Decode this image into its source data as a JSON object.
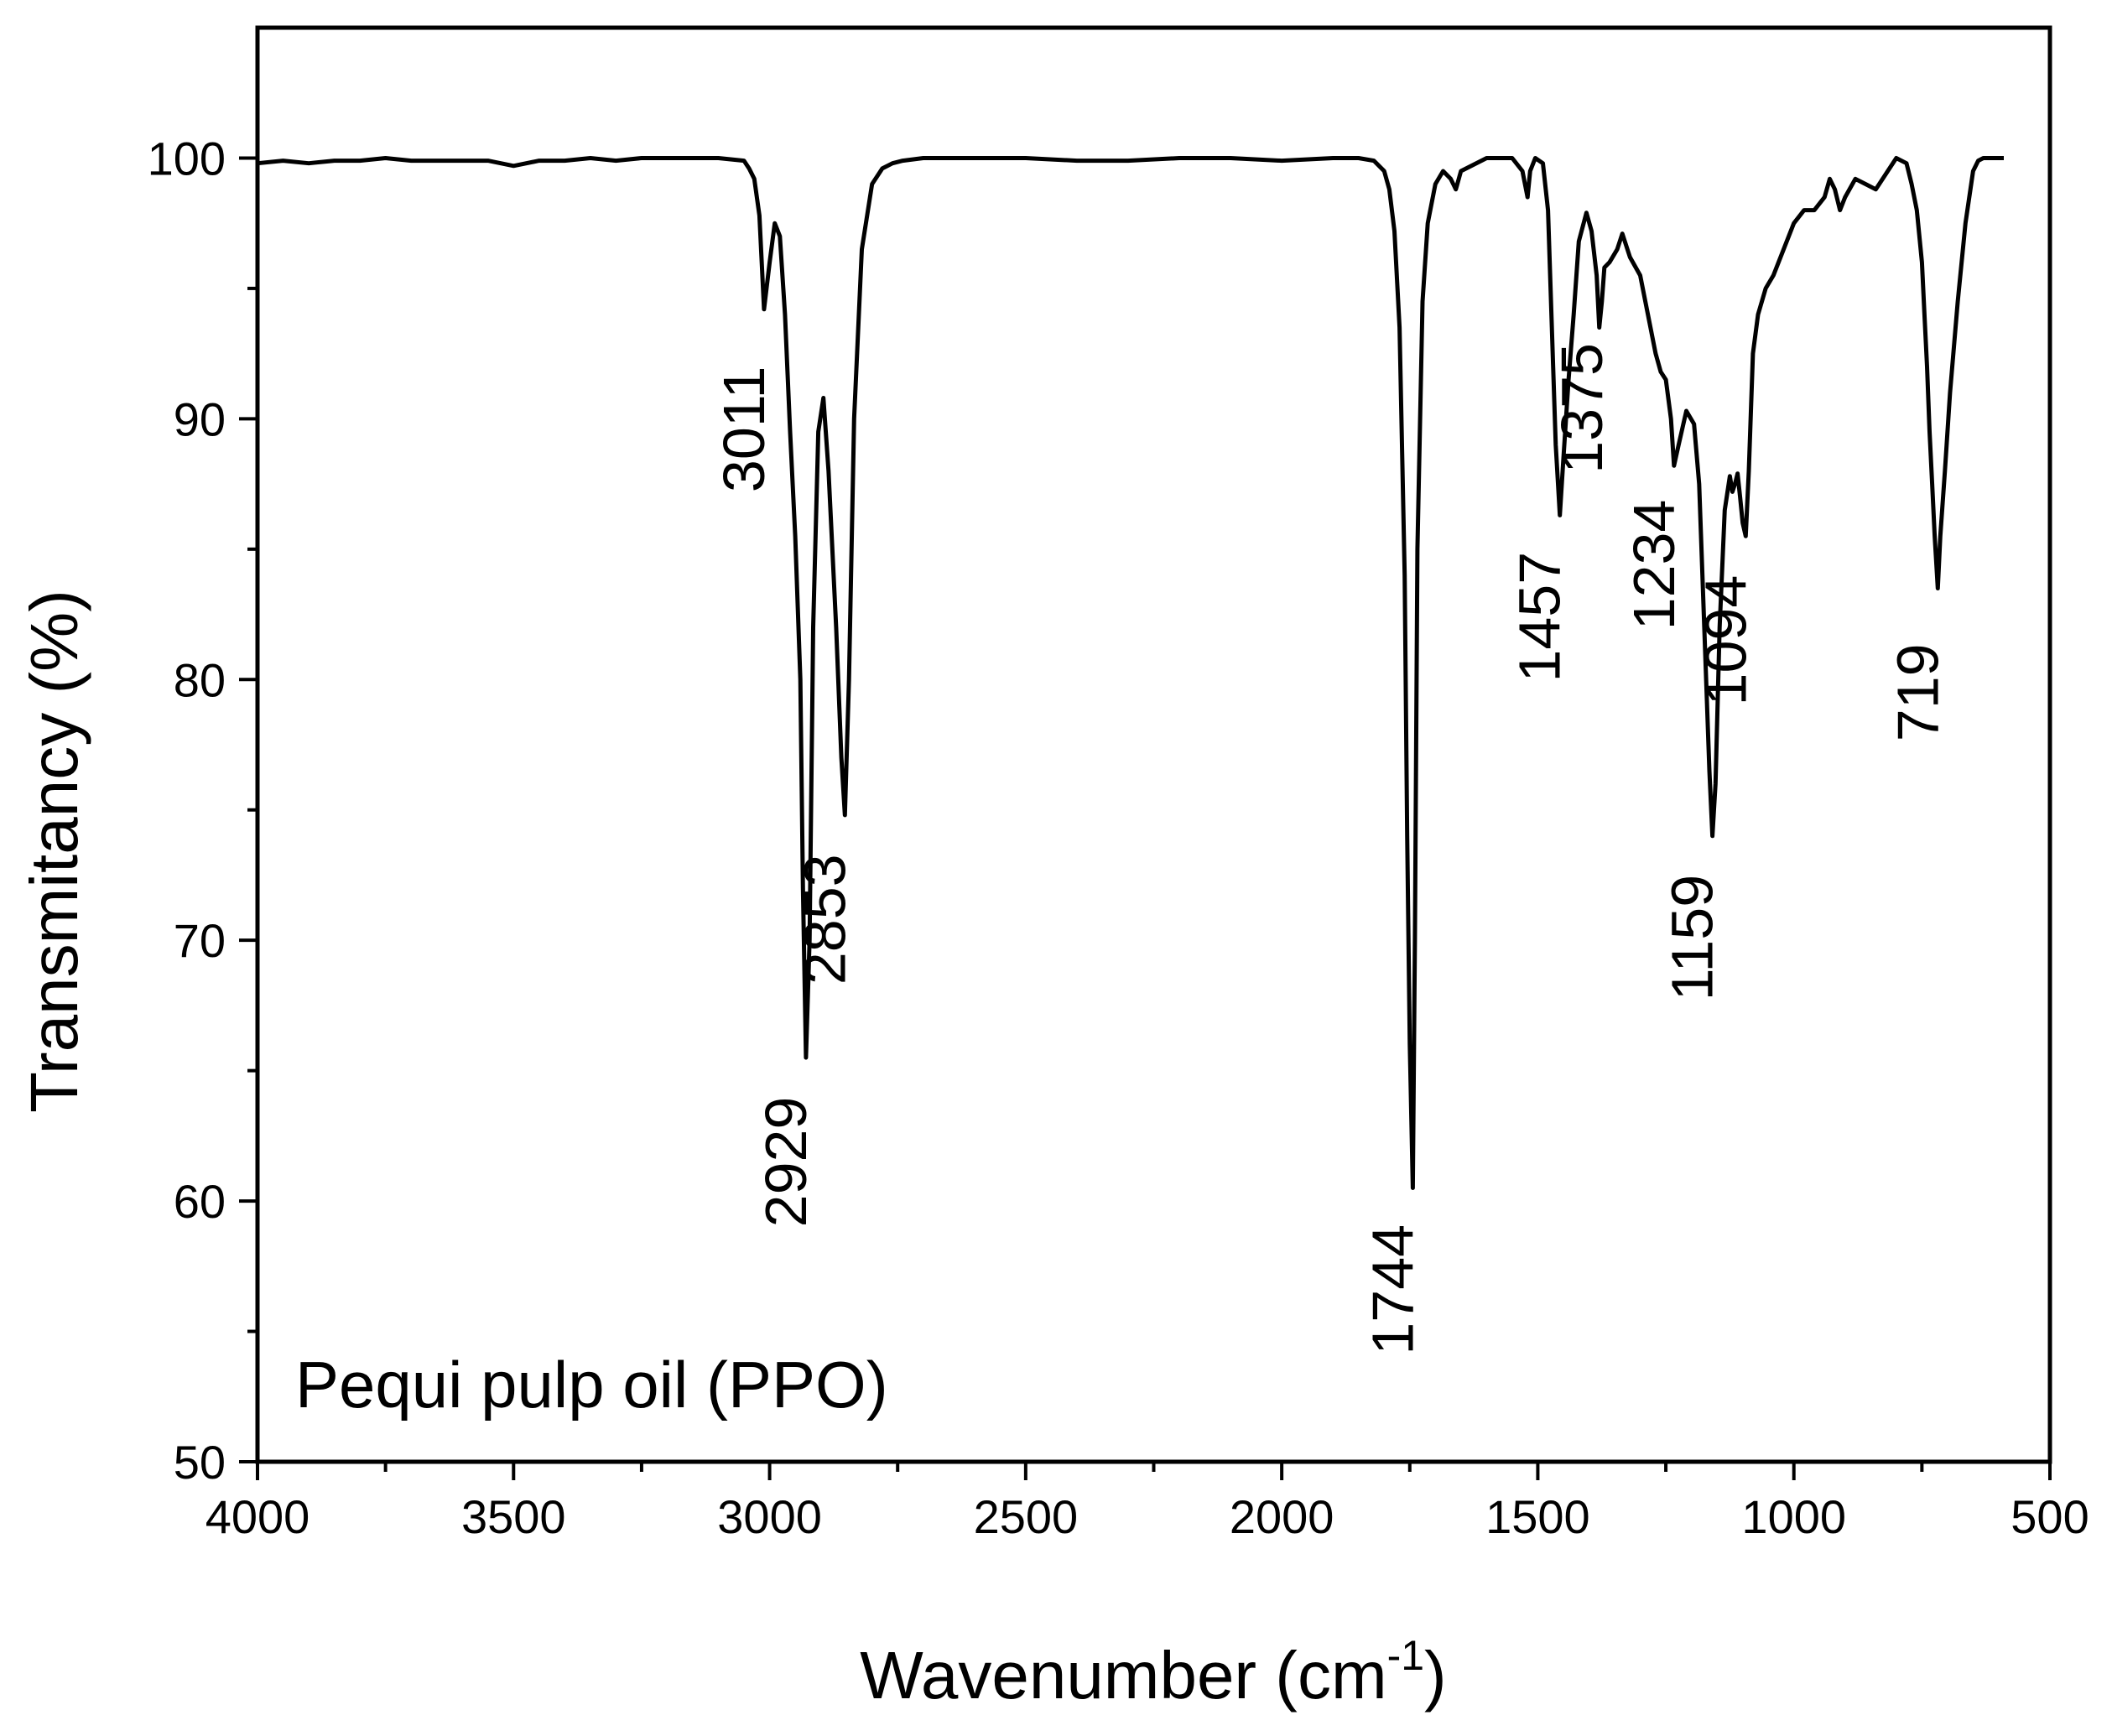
{
  "chart_data": {
    "type": "line",
    "title": "",
    "xlabel": "Wavenumber (cm",
    "xlabel_sup": "-1",
    "xlabel_close": ")",
    "ylabel": "Transmitancy (%)",
    "xlim": [
      4000,
      500
    ],
    "ylim": [
      50,
      105
    ],
    "x_ticks": [
      4000,
      3500,
      3000,
      2500,
      2000,
      1500,
      1000,
      500
    ],
    "y_ticks": [
      50,
      60,
      70,
      80,
      90,
      100
    ],
    "x_minor_step": 250,
    "y_minor_step": 5,
    "grid": false,
    "annotation": "Pequi pulp oil (PPO)",
    "line_color": "#000000",
    "series": [
      {
        "name": "Pequi pulp oil (PPO)",
        "x": [
          4000,
          3950,
          3900,
          3850,
          3800,
          3750,
          3700,
          3650,
          3600,
          3550,
          3500,
          3450,
          3400,
          3350,
          3300,
          3250,
          3200,
          3150,
          3100,
          3050,
          3040,
          3030,
          3020,
          3011,
          3000,
          2990,
          2980,
          2970,
          2960,
          2950,
          2940,
          2935,
          2929,
          2922,
          2915,
          2905,
          2895,
          2885,
          2870,
          2860,
          2853,
          2845,
          2835,
          2820,
          2800,
          2780,
          2760,
          2740,
          2700,
          2600,
          2500,
          2400,
          2300,
          2200,
          2100,
          2000,
          1900,
          1850,
          1820,
          1800,
          1790,
          1780,
          1770,
          1760,
          1755,
          1750,
          1744,
          1740,
          1735,
          1725,
          1715,
          1700,
          1685,
          1670,
          1660,
          1650,
          1600,
          1550,
          1530,
          1520,
          1515,
          1505,
          1490,
          1480,
          1470,
          1465,
          1457,
          1450,
          1440,
          1430,
          1420,
          1405,
          1395,
          1385,
          1380,
          1375,
          1370,
          1360,
          1345,
          1335,
          1320,
          1300,
          1285,
          1270,
          1260,
          1250,
          1240,
          1234,
          1225,
          1210,
          1195,
          1185,
          1175,
          1165,
          1159,
          1153,
          1145,
          1135,
          1125,
          1120,
          1115,
          1110,
          1105,
          1100,
          1094,
          1088,
          1080,
          1070,
          1055,
          1040,
          1020,
          1000,
          980,
          960,
          940,
          930,
          920,
          910,
          900,
          880,
          860,
          840,
          820,
          800,
          780,
          770,
          760,
          750,
          745,
          740,
          735,
          730,
          725,
          719,
          714,
          705,
          695,
          680,
          665,
          650,
          640,
          630,
          620,
          610,
          600,
          590
        ],
        "y": [
          99.8,
          99.9,
          99.8,
          99.9,
          99.9,
          100.0,
          99.9,
          99.9,
          99.9,
          99.9,
          99.7,
          99.9,
          99.9,
          100.0,
          99.9,
          100.0,
          100.0,
          100.0,
          100.0,
          99.9,
          99.6,
          99.2,
          97.8,
          94.2,
          96.0,
          97.5,
          97.0,
          94.0,
          89.5,
          85.5,
          80.0,
          72.0,
          65.5,
          70.0,
          82.0,
          89.5,
          90.8,
          88.0,
          82.0,
          77.0,
          74.8,
          80.0,
          90.0,
          96.5,
          99.0,
          99.6,
          99.8,
          99.9,
          100.0,
          100.0,
          100.0,
          99.9,
          99.9,
          100.0,
          100.0,
          99.9,
          100.0,
          100.0,
          99.9,
          99.5,
          98.8,
          97.2,
          93.5,
          84.0,
          74.0,
          66.0,
          60.5,
          70.0,
          85.0,
          94.5,
          97.5,
          99.0,
          99.5,
          99.2,
          98.8,
          99.5,
          100.0,
          100.0,
          99.5,
          98.5,
          99.5,
          100.0,
          99.8,
          98.0,
          92.0,
          89.0,
          86.3,
          88.5,
          91.5,
          94.0,
          96.8,
          97.9,
          97.2,
          95.5,
          93.5,
          94.5,
          95.8,
          96.0,
          96.5,
          97.1,
          96.2,
          95.5,
          94.0,
          92.5,
          91.8,
          91.5,
          90.0,
          88.2,
          89.0,
          90.3,
          89.8,
          87.5,
          82.0,
          76.5,
          74.0,
          76.0,
          82.0,
          86.5,
          87.8,
          87.2,
          87.5,
          87.9,
          87.0,
          86.0,
          85.5,
          88.0,
          92.5,
          94.0,
          95.0,
          95.5,
          96.5,
          97.5,
          98.0,
          98.0,
          98.5,
          99.2,
          98.8,
          98.0,
          98.5,
          99.2,
          99.0,
          98.8,
          99.4,
          100.0,
          99.8,
          99.0,
          98.0,
          96.0,
          94.0,
          92.0,
          89.5,
          87.5,
          85.5,
          83.5,
          85.5,
          88.0,
          91.0,
          94.5,
          97.5,
          99.5,
          99.9,
          100.0,
          100.0,
          100.0,
          100.0,
          100.0
        ]
      }
    ],
    "peak_labels": [
      {
        "text": "3011",
        "x": 3011,
        "y": 89.6
      },
      {
        "text": "2929",
        "x": 2929,
        "y": 61.5
      },
      {
        "text": "2853",
        "x": 2853,
        "y": 70.8
      },
      {
        "text": "1744",
        "x": 1744,
        "y": 56.6
      },
      {
        "text": "1457",
        "x": 1457,
        "y": 82.4
      },
      {
        "text": "1375",
        "x": 1375,
        "y": 90.4
      },
      {
        "text": "1234",
        "x": 1234,
        "y": 84.4
      },
      {
        "text": "1159",
        "x": 1159,
        "y": 70.1
      },
      {
        "text": "1094",
        "x": 1094,
        "y": 81.5
      },
      {
        "text": "719",
        "x": 719,
        "y": 79.5
      }
    ]
  }
}
